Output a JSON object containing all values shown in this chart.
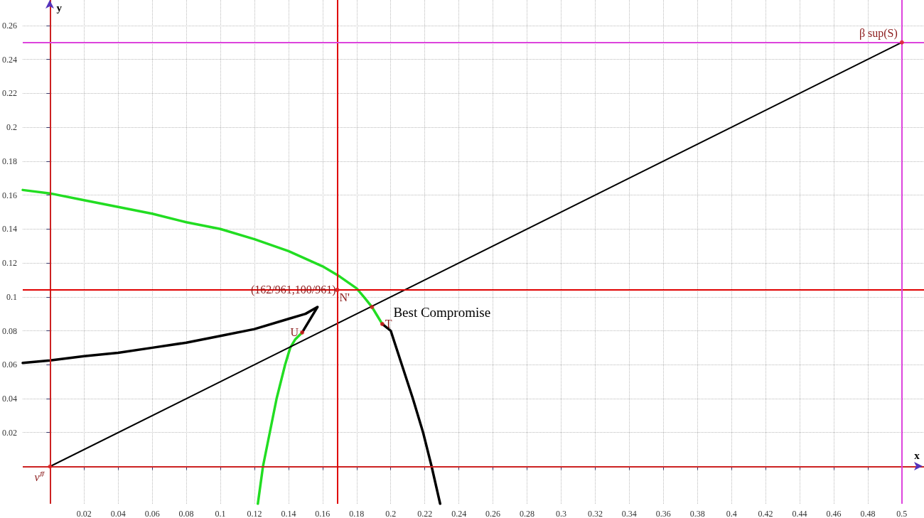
{
  "chart_data": {
    "type": "line",
    "xlabel": "x",
    "ylabel": "y",
    "xlim": [
      -0.016,
      0.513
    ],
    "ylim": [
      -0.022,
      0.275
    ],
    "xticks": [
      0.02,
      0.04,
      0.06,
      0.08,
      0.1,
      0.12,
      0.14,
      0.16,
      0.18,
      0.2,
      0.22,
      0.24,
      0.26,
      0.28,
      0.3,
      0.32,
      0.34,
      0.36,
      0.38,
      0.4,
      0.42,
      0.44,
      0.46,
      0.48,
      0.5
    ],
    "yticks": [
      0.02,
      0.04,
      0.06,
      0.08,
      0.1,
      0.12,
      0.14,
      0.16,
      0.18,
      0.2,
      0.22,
      0.24,
      0.26
    ],
    "grid": true,
    "marker": "none",
    "line_style": "solid",
    "series": [
      {
        "color": "#22dd22",
        "x": [
          -0.016,
          0,
          0.02,
          0.04,
          0.06,
          0.08,
          0.1,
          0.12,
          0.14,
          0.16,
          0.17,
          0.18,
          0.185,
          0.189,
          0.192,
          0.195
        ],
        "values": [
          0.163,
          0.161,
          0.157,
          0.153,
          0.149,
          0.144,
          0.14,
          0.134,
          0.127,
          0.118,
          0.112,
          0.105,
          0.099,
          0.094,
          0.089,
          0.084
        ]
      },
      {
        "color": "#000000",
        "x": [
          0.195,
          0.2,
          0.2065,
          0.213,
          0.219,
          0.224,
          0.229
        ],
        "values": [
          0.084,
          0.08,
          0.06,
          0.04,
          0.02,
          0,
          -0.022
        ]
      },
      {
        "color": "#22dd22",
        "x": [
          0.122,
          0.125,
          0.129,
          0.133,
          0.138,
          0.141,
          0.144,
          0.148
        ],
        "values": [
          -0.022,
          0,
          0.02,
          0.04,
          0.06,
          0.07,
          0.075,
          0.079
        ]
      },
      {
        "color": "#000000",
        "x": [
          0.148,
          0.157,
          0.15,
          0.14,
          0.12,
          0.1,
          0.08,
          0.06,
          0.04,
          0.02,
          0,
          -0.016
        ],
        "values": [
          0.079,
          0.094,
          0.09,
          0.087,
          0.081,
          0.077,
          0.073,
          0.07,
          0.067,
          0.065,
          0.0625,
          0.061
        ]
      },
      {
        "color": "#000000",
        "x": [
          0,
          0.5
        ],
        "values": [
          0,
          0.25
        ]
      }
    ],
    "ref_lines": [
      {
        "axis": "x",
        "value": 0,
        "color": "#cc2222"
      },
      {
        "axis": "y",
        "value": 0,
        "color": "#cc2222"
      },
      {
        "axis": "x",
        "value": 0.1686,
        "color": "#e00000"
      },
      {
        "axis": "y",
        "value": 0.1041,
        "color": "#e00000"
      },
      {
        "axis": "x",
        "value": 0.5,
        "color": "#dd44dd"
      },
      {
        "axis": "y",
        "value": 0.25,
        "color": "#dd44dd"
      }
    ],
    "annotations": [
      {
        "text": "(162/961,100/961)",
        "x": 0.1686,
        "y": 0.1041
      },
      {
        "text": "N'",
        "x": 0.1686,
        "y": 0.1041
      },
      {
        "text": "Best Compromise",
        "x": 0.189,
        "y": 0.094
      },
      {
        "text": "T",
        "x": 0.195,
        "y": 0.084
      },
      {
        "text": "U",
        "x": 0.148,
        "y": 0.079
      },
      {
        "text": "β sup(S)",
        "x": 0.5,
        "y": 0.25
      },
      {
        "text": "ν$^{#}$",
        "x": 0,
        "y": 0
      }
    ]
  }
}
